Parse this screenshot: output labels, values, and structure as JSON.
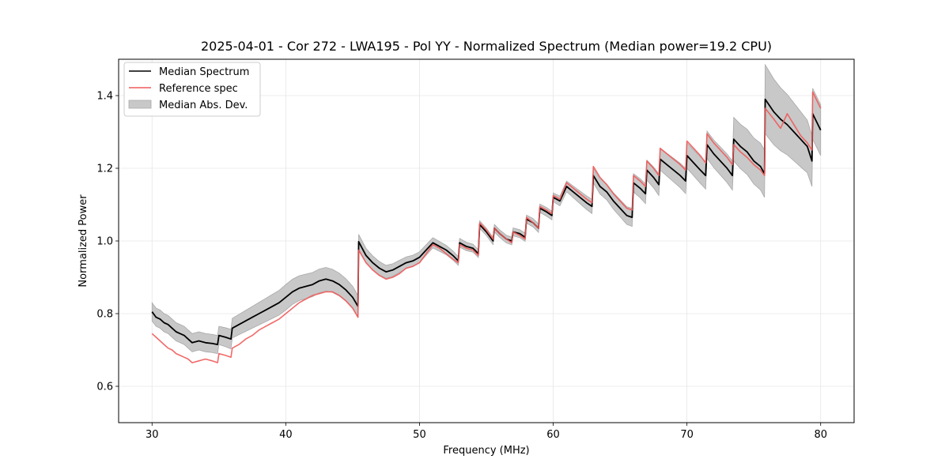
{
  "chart_data": {
    "type": "line",
    "title": "2025-04-01 - Cor 272 - LWA195 - Pol YY - Normalized Spectrum (Median power=19.2 CPU)",
    "xlabel": "Frequency (MHz)",
    "ylabel": "Normalized Power",
    "xlim": [
      27.5,
      82.5
    ],
    "ylim": [
      0.5,
      1.5
    ],
    "xticks": [
      30,
      40,
      50,
      60,
      70,
      80
    ],
    "xtick_labels": [
      "30",
      "40",
      "50",
      "60",
      "70",
      "80"
    ],
    "yticks": [
      0.6,
      0.8,
      1.0,
      1.2,
      1.4
    ],
    "ytick_labels": [
      "0.6",
      "0.8",
      "1.0",
      "1.2",
      "1.4"
    ],
    "grid": true,
    "legend_position": "top-left",
    "legend": [
      {
        "label": "Median Spectrum",
        "kind": "line",
        "color": "#000000"
      },
      {
        "label": "Reference spec",
        "kind": "line",
        "color": "#f05a5a"
      },
      {
        "label": "Median Abs. Dev.",
        "kind": "band",
        "color": "#c8c8c8"
      }
    ],
    "series": [
      {
        "name": "Median Spectrum",
        "color": "#000000",
        "x": [
          30.0,
          30.3,
          30.6,
          30.9,
          31.2,
          31.5,
          31.8,
          32.1,
          32.4,
          32.7,
          33.0,
          33.5,
          34.0,
          34.5,
          34.9,
          35.0,
          35.5,
          35.9,
          36.0,
          36.5,
          37.0,
          37.5,
          38.0,
          38.5,
          39.0,
          39.5,
          40.0,
          40.5,
          41.0,
          41.5,
          42.0,
          42.5,
          43.0,
          43.5,
          44.0,
          44.5,
          45.0,
          45.4,
          45.45,
          46.0,
          46.5,
          47.0,
          47.5,
          48.0,
          48.5,
          49.0,
          49.5,
          50.0,
          50.5,
          51.0,
          51.5,
          52.0,
          52.5,
          52.9,
          53.0,
          53.5,
          54.0,
          54.4,
          54.5,
          55.0,
          55.5,
          55.6,
          56.0,
          56.5,
          56.9,
          57.0,
          57.5,
          57.9,
          58.0,
          58.5,
          58.9,
          59.0,
          59.5,
          59.9,
          60.0,
          60.5,
          61.0,
          61.5,
          62.0,
          62.5,
          62.9,
          63.0,
          63.5,
          64.0,
          64.5,
          65.0,
          65.5,
          65.9,
          66.0,
          66.5,
          66.9,
          67.0,
          67.5,
          67.9,
          68.0,
          68.5,
          69.0,
          69.5,
          69.9,
          70.0,
          70.5,
          71.0,
          71.4,
          71.5,
          72.0,
          72.5,
          73.0,
          73.4,
          73.5,
          74.0,
          74.5,
          75.0,
          75.5,
          75.8,
          75.85,
          76.5,
          77.0,
          77.5,
          78.0,
          78.5,
          79.0,
          79.35,
          79.4,
          80.0
        ],
        "values": [
          0.805,
          0.79,
          0.785,
          0.775,
          0.77,
          0.76,
          0.75,
          0.745,
          0.74,
          0.73,
          0.72,
          0.725,
          0.72,
          0.718,
          0.715,
          0.74,
          0.735,
          0.73,
          0.76,
          0.77,
          0.78,
          0.79,
          0.8,
          0.81,
          0.82,
          0.83,
          0.845,
          0.86,
          0.87,
          0.875,
          0.88,
          0.89,
          0.895,
          0.89,
          0.88,
          0.865,
          0.845,
          0.82,
          0.998,
          0.96,
          0.94,
          0.925,
          0.915,
          0.92,
          0.93,
          0.94,
          0.945,
          0.955,
          0.975,
          0.995,
          0.985,
          0.975,
          0.96,
          0.945,
          0.995,
          0.985,
          0.98,
          0.965,
          1.045,
          1.025,
          1.0,
          1.035,
          1.02,
          1.005,
          1.0,
          1.025,
          1.02,
          1.01,
          1.06,
          1.05,
          1.035,
          1.09,
          1.08,
          1.07,
          1.12,
          1.11,
          1.15,
          1.135,
          1.12,
          1.105,
          1.095,
          1.18,
          1.15,
          1.135,
          1.11,
          1.09,
          1.07,
          1.065,
          1.16,
          1.145,
          1.13,
          1.195,
          1.175,
          1.155,
          1.225,
          1.21,
          1.195,
          1.18,
          1.165,
          1.235,
          1.215,
          1.195,
          1.18,
          1.265,
          1.24,
          1.22,
          1.2,
          1.18,
          1.28,
          1.26,
          1.245,
          1.22,
          1.205,
          1.185,
          1.39,
          1.355,
          1.335,
          1.32,
          1.3,
          1.28,
          1.26,
          1.22,
          1.35,
          1.305
        ]
      },
      {
        "name": "Reference spec",
        "color": "#f05a5a",
        "x": [
          30.0,
          30.3,
          30.6,
          30.9,
          31.2,
          31.5,
          31.8,
          32.1,
          32.4,
          32.7,
          33.0,
          33.5,
          34.0,
          34.5,
          34.9,
          35.0,
          35.5,
          35.9,
          36.0,
          36.5,
          37.0,
          37.5,
          38.0,
          38.5,
          39.0,
          39.5,
          40.0,
          40.5,
          41.0,
          41.5,
          42.0,
          42.5,
          43.0,
          43.5,
          44.0,
          44.5,
          45.0,
          45.4,
          45.45,
          46.0,
          46.5,
          47.0,
          47.5,
          48.0,
          48.5,
          49.0,
          49.5,
          50.0,
          50.5,
          51.0,
          51.5,
          52.0,
          52.5,
          52.9,
          53.0,
          53.5,
          54.0,
          54.4,
          54.5,
          55.0,
          55.5,
          55.6,
          56.0,
          56.5,
          56.9,
          57.0,
          57.5,
          57.9,
          58.0,
          58.5,
          58.9,
          59.0,
          59.5,
          59.9,
          60.0,
          60.5,
          61.0,
          61.5,
          62.0,
          62.5,
          62.9,
          63.0,
          63.5,
          64.0,
          64.5,
          65.0,
          65.5,
          65.9,
          66.0,
          66.5,
          66.9,
          67.0,
          67.5,
          67.9,
          68.0,
          68.5,
          69.0,
          69.5,
          69.9,
          70.0,
          70.5,
          71.0,
          71.4,
          71.5,
          72.0,
          72.5,
          73.0,
          73.4,
          73.5,
          74.0,
          74.5,
          75.0,
          75.5,
          75.8,
          75.85,
          76.5,
          77.0,
          77.5,
          78.0,
          78.5,
          79.0,
          79.35,
          79.4,
          80.0
        ],
        "values": [
          0.745,
          0.735,
          0.725,
          0.715,
          0.705,
          0.7,
          0.69,
          0.685,
          0.68,
          0.675,
          0.665,
          0.67,
          0.675,
          0.67,
          0.665,
          0.69,
          0.685,
          0.68,
          0.705,
          0.715,
          0.73,
          0.74,
          0.755,
          0.765,
          0.775,
          0.785,
          0.8,
          0.815,
          0.83,
          0.84,
          0.85,
          0.855,
          0.86,
          0.86,
          0.85,
          0.835,
          0.815,
          0.79,
          0.975,
          0.94,
          0.92,
          0.905,
          0.895,
          0.9,
          0.91,
          0.925,
          0.93,
          0.94,
          0.965,
          0.99,
          0.98,
          0.965,
          0.95,
          0.94,
          0.99,
          0.98,
          0.975,
          0.96,
          1.05,
          1.03,
          1.005,
          1.035,
          1.02,
          1.005,
          0.995,
          1.025,
          1.015,
          1.005,
          1.065,
          1.05,
          1.035,
          1.095,
          1.085,
          1.075,
          1.125,
          1.115,
          1.16,
          1.145,
          1.13,
          1.115,
          1.105,
          1.205,
          1.175,
          1.155,
          1.13,
          1.11,
          1.09,
          1.085,
          1.18,
          1.165,
          1.15,
          1.22,
          1.2,
          1.18,
          1.255,
          1.24,
          1.225,
          1.21,
          1.195,
          1.275,
          1.255,
          1.235,
          1.215,
          1.295,
          1.27,
          1.25,
          1.23,
          1.21,
          1.265,
          1.245,
          1.23,
          1.21,
          1.195,
          1.18,
          1.365,
          1.335,
          1.31,
          1.35,
          1.32,
          1.29,
          1.27,
          1.25,
          1.41,
          1.365
        ]
      }
    ],
    "band": {
      "name": "Median Abs. Dev.",
      "color": "#c8c8c8",
      "center_series": "Median Spectrum",
      "x": [
        30.0,
        35.0,
        40.0,
        45.4,
        45.45,
        50.0,
        55.0,
        60.0,
        63.0,
        65.9,
        66.0,
        70.0,
        73.4,
        73.5,
        75.8,
        75.85,
        79.35,
        79.4,
        80.0
      ],
      "halfwidth": [
        0.025,
        0.025,
        0.035,
        0.03,
        0.02,
        0.015,
        0.01,
        0.012,
        0.02,
        0.025,
        0.025,
        0.035,
        0.04,
        0.06,
        0.065,
        0.095,
        0.07,
        0.07,
        0.07
      ]
    }
  }
}
